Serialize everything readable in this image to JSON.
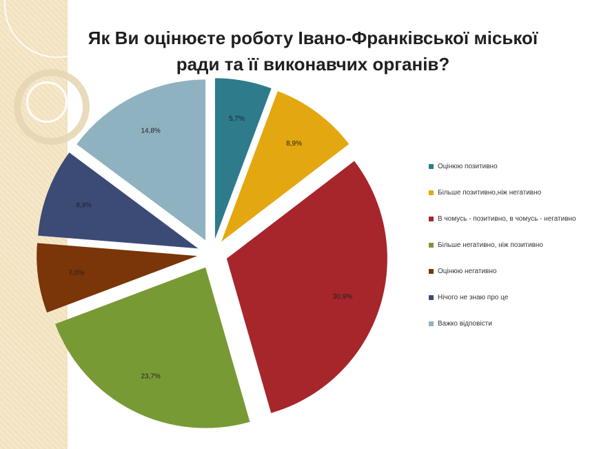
{
  "title": {
    "line1": "Як Ви оцінюєте роботу Івано-Франківської міської",
    "line2": "ради та її виконавчих органів?"
  },
  "chart_data": {
    "type": "pie",
    "title": "Як Ви оцінюєте роботу Івано-Франківської міської ради та її виконавчих органів?",
    "legend_position": "right",
    "exploded": true,
    "slices": [
      {
        "label": "Оцінюю позитивно",
        "value": 5.7,
        "value_label": "5,7%",
        "color": "#2e7b8c"
      },
      {
        "label": "Більше позитивно,ніж  негативно",
        "value": 8.9,
        "value_label": "8,9%",
        "color": "#e3a70f"
      },
      {
        "label": "В чомусь - позитивно, в чомусь - негативно",
        "value": 30.9,
        "value_label": "30,9%",
        "color": "#a7262b"
      },
      {
        "label": "Більше негативно,  ніж позитивно",
        "value": 23.7,
        "value_label": "23,7%",
        "color": "#789a35"
      },
      {
        "label": "Оцінюю негативно",
        "value": 7.0,
        "value_label": "7,0%",
        "color": "#7a3508"
      },
      {
        "label": "Нічого не знаю про це",
        "value": 8.9,
        "value_label": "8,9%",
        "color": "#3c4a76"
      },
      {
        "label": "Важко відповісти",
        "value": 14.8,
        "value_label": "14,8%",
        "color": "#8fb2c0"
      }
    ]
  }
}
